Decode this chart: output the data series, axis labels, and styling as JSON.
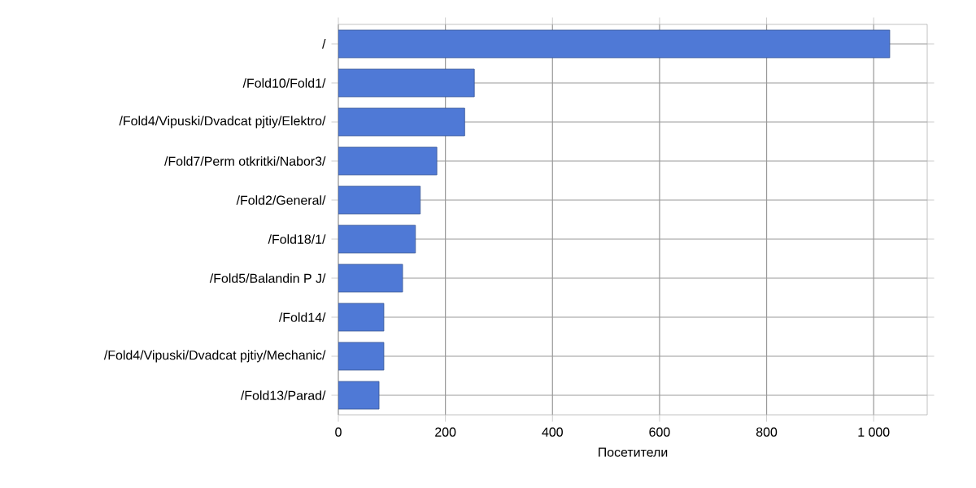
{
  "chart_data": {
    "type": "bar",
    "orientation": "horizontal",
    "categories": [
      "/",
      "/Fold10/Fold1/",
      "/Fold4/Vipuski/Dvadcat pjtiy/Elektro/",
      "/Fold7/Perm otkritki/Nabor3/",
      "/Fold2/General/",
      "/Fold18/1/",
      "/Fold5/Balandin P J/",
      "/Fold14/",
      "/Fold4/Vipuski/Dvadcat pjtiy/Mechanic/",
      "/Fold13/Parad/"
    ],
    "values": [
      1030,
      254,
      236,
      184,
      153,
      144,
      120,
      85,
      85,
      76
    ],
    "color": "#4f79d6",
    "xlabel": "Посетители",
    "xlim": [
      0,
      1100
    ],
    "xticks": [
      0,
      200,
      400,
      600,
      800,
      {
        "value": 1000,
        "label": "1 000"
      }
    ],
    "grid": true
  }
}
